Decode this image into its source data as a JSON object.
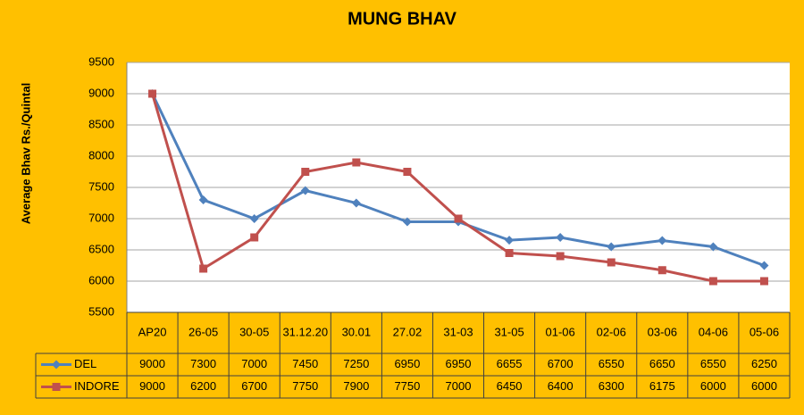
{
  "chart_data": {
    "type": "line",
    "title": "MUNG BHAV",
    "y_label": "Average Bhav Rs./Quintal",
    "categories": [
      "AP20",
      "26-05",
      "30-05",
      "31.12.20",
      "30.01",
      "27.02",
      "31-03",
      "31-05",
      "01-06",
      "02-06",
      "03-06",
      "04-06",
      "05-06"
    ],
    "series": [
      {
        "name": "DEL",
        "color": "#4f81bd",
        "marker": "diamond",
        "values": [
          9000,
          7300,
          7000,
          7450,
          7250,
          6950,
          6950,
          6655,
          6700,
          6550,
          6650,
          6550,
          6250
        ]
      },
      {
        "name": "INDORE",
        "color": "#c0504d",
        "marker": "square",
        "values": [
          9000,
          6200,
          6700,
          7750,
          7900,
          7750,
          7000,
          6450,
          6400,
          6300,
          6175,
          6000,
          6000
        ]
      }
    ],
    "ylim": [
      5500,
      9500
    ],
    "yticks": [
      5500,
      6000,
      6500,
      7000,
      7500,
      8000,
      8500,
      9000,
      9500
    ],
    "grid": true,
    "data_table": true
  }
}
